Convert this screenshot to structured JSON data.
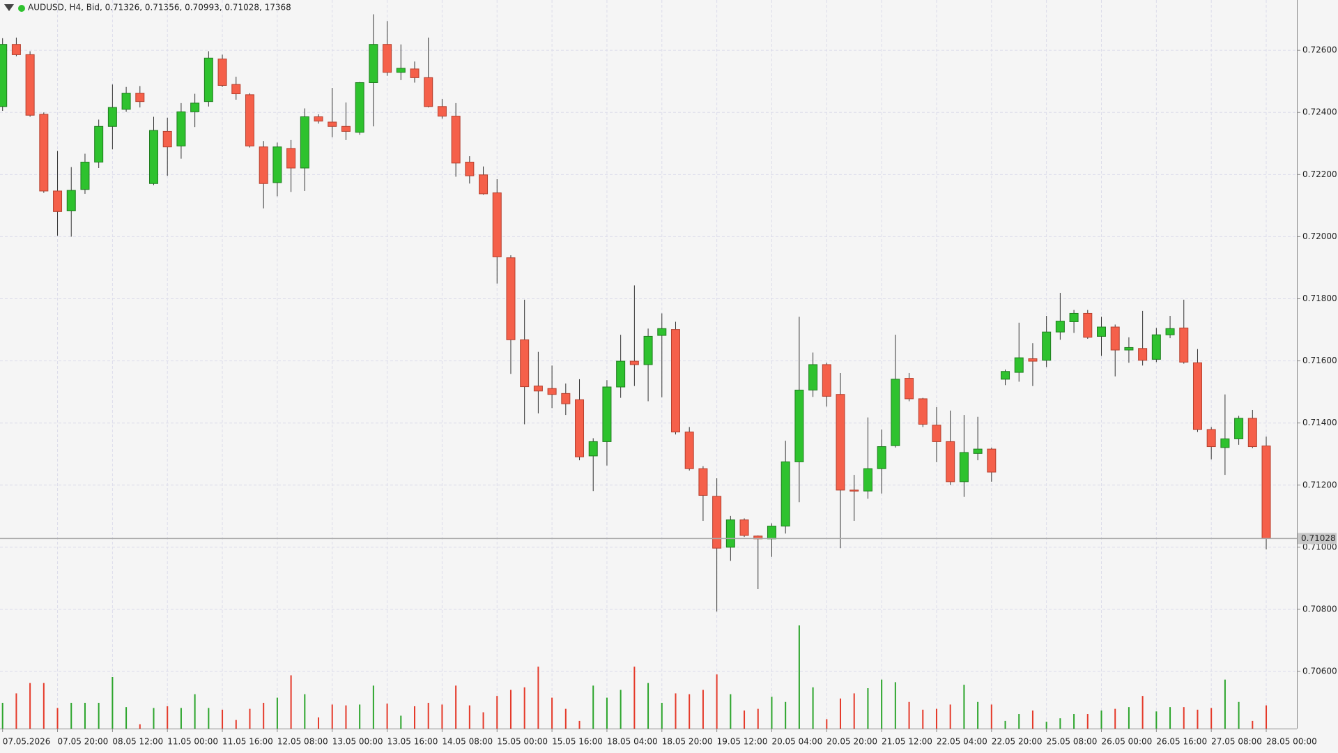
{
  "chart_data": {
    "type": "candlestick",
    "title": "AUDUSD, H4, Bid, 0.71326, 0.71356, 0.70993, 0.71028, 17368",
    "categories": [
      "07.05.2026",
      null,
      null,
      null,
      "07.05 20:00",
      null,
      null,
      null,
      "08.05 12:00",
      null,
      null,
      null,
      "11.05 00:00",
      null,
      null,
      null,
      "11.05 16:00",
      null,
      null,
      null,
      "12.05 08:00",
      null,
      null,
      null,
      "13.05 00:00",
      null,
      null,
      null,
      "13.05 16:00",
      null,
      null,
      null,
      "14.05 08:00",
      null,
      null,
      null,
      "15.05 00:00",
      null,
      null,
      null,
      "15.05 16:00",
      null,
      null,
      null,
      "18.05 04:00",
      null,
      null,
      null,
      "18.05 20:00",
      null,
      null,
      null,
      "19.05 12:00",
      null,
      null,
      null,
      "20.05 04:00",
      null,
      null,
      null,
      "20.05 20:00",
      null,
      null,
      null,
      "21.05 12:00",
      null,
      null,
      null,
      "22.05 04:00",
      null,
      null,
      null,
      "22.05 20:00",
      null,
      null,
      null,
      "25.05 08:00",
      null,
      null,
      null,
      "26.05 00:00",
      null,
      null,
      null,
      "26.05 16:00",
      null,
      null,
      null,
      "27.05 08:00",
      null,
      null,
      null,
      "28.05 00:00"
    ],
    "open": [
      0.72419,
      0.72619,
      0.72586,
      0.72394,
      0.72147,
      0.72083,
      0.72152,
      0.7224,
      0.72355,
      0.7241,
      0.72462,
      0.72171,
      0.72339,
      0.72292,
      0.72402,
      0.72435,
      0.72572,
      0.7249,
      0.72457,
      0.72289,
      0.72174,
      0.72284,
      0.72221,
      0.72386,
      0.72369,
      0.72355,
      0.72336,
      0.72496,
      0.72619,
      0.72529,
      0.7254,
      0.72512,
      0.72419,
      0.72388,
      0.7224,
      0.72199,
      0.72141,
      0.71932,
      0.71668,
      0.71519,
      0.71511,
      0.71495,
      0.71475,
      0.71294,
      0.7134,
      0.71516,
      0.71599,
      0.71588,
      0.71682,
      0.71701,
      0.71371,
      0.71253,
      0.71164,
      0.71,
      0.71088,
      0.71036,
      0.71027,
      0.71068,
      0.71275,
      0.71506,
      0.71588,
      0.71492,
      0.71184,
      0.71181,
      0.71253,
      0.71327,
      0.71544,
      0.71478,
      0.71393,
      0.7134,
      0.71211,
      0.71302,
      0.71316,
      0.71541,
      0.71563,
      0.71607,
      0.71602,
      0.71693,
      0.71726,
      0.71753,
      0.71679,
      0.71709,
      0.71635,
      0.7164,
      0.71605,
      0.71684,
      0.71706,
      0.71594,
      0.71379,
      0.71321,
      0.71349,
      0.71415,
      0.71326
    ],
    "high": [
      0.72639,
      0.72641,
      0.72597,
      0.724,
      0.72276,
      0.72224,
      0.72267,
      0.72377,
      0.7249,
      0.72482,
      0.72485,
      0.72386,
      0.72383,
      0.7243,
      0.7246,
      0.72597,
      0.72586,
      0.72515,
      0.72462,
      0.72308,
      0.72303,
      0.72311,
      0.72413,
      0.72394,
      0.72479,
      0.72432,
      0.72498,
      0.72716,
      0.72694,
      0.72619,
      0.72564,
      0.72641,
      0.72443,
      0.7243,
      0.72259,
      0.72226,
      0.72185,
      0.7194,
      0.71797,
      0.71629,
      0.71585,
      0.71527,
      0.71541,
      0.71351,
      0.71538,
      0.71684,
      0.71843,
      0.71704,
      0.71753,
      0.71726,
      0.71387,
      0.71261,
      0.71222,
      0.71101,
      0.71093,
      0.71038,
      0.71077,
      0.71343,
      0.71742,
      0.71627,
      0.71594,
      0.71561,
      0.71233,
      0.71418,
      0.71379,
      0.71684,
      0.71561,
      0.71481,
      0.71451,
      0.7144,
      0.71426,
      0.7142,
      0.71321,
      0.71572,
      0.71723,
      0.71657,
      0.71745,
      0.71819,
      0.71764,
      0.71764,
      0.71742,
      0.71717,
      0.71676,
      0.71761,
      0.71706,
      0.71745,
      0.71797,
      0.71638,
      0.71387,
      0.71492,
      0.71423,
      0.71442,
      0.71356
    ],
    "low": [
      0.72405,
      0.72581,
      0.72386,
      0.72141,
      0.72003,
      0.72,
      0.72138,
      0.72221,
      0.72281,
      0.72402,
      0.72416,
      0.72166,
      0.72196,
      0.72251,
      0.72353,
      0.72419,
      0.72482,
      0.72441,
      0.72287,
      0.72091,
      0.7213,
      0.72144,
      0.72147,
      0.72364,
      0.7232,
      0.72311,
      0.72328,
      0.72355,
      0.72518,
      0.72504,
      0.72496,
      0.72416,
      0.7238,
      0.72193,
      0.72171,
      0.72135,
      0.71849,
      0.71558,
      0.71396,
      0.71431,
      0.71448,
      0.71426,
      0.7128,
      0.71181,
      0.71263,
      0.71481,
      0.71519,
      0.7147,
      0.71483,
      0.71363,
      0.71247,
      0.71085,
      0.70793,
      0.70956,
      0.71033,
      0.70865,
      0.70969,
      0.71044,
      0.71145,
      0.71484,
      0.71453,
      0.70997,
      0.71085,
      0.71156,
      0.71173,
      0.71321,
      0.7147,
      0.71387,
      0.71274,
      0.712,
      0.71162,
      0.7128,
      0.71211,
      0.71522,
      0.71533,
      0.71519,
      0.7158,
      0.71668,
      0.7169,
      0.71671,
      0.71616,
      0.7155,
      0.71594,
      0.71585,
      0.71596,
      0.71673,
      0.71591,
      0.71371,
      0.71283,
      0.71233,
      0.7133,
      0.71319,
      0.70993
    ],
    "close": [
      0.72619,
      0.72586,
      0.72391,
      0.72147,
      0.72081,
      0.72149,
      0.7224,
      0.72355,
      0.72416,
      0.72462,
      0.72435,
      0.72342,
      0.72289,
      0.72402,
      0.7243,
      0.72575,
      0.72487,
      0.7246,
      0.72292,
      0.72171,
      0.72289,
      0.72221,
      0.72386,
      0.72372,
      0.72355,
      0.72339,
      0.72496,
      0.72619,
      0.72529,
      0.72542,
      0.72512,
      0.72419,
      0.72388,
      0.72237,
      0.72196,
      0.72138,
      0.71935,
      0.71668,
      0.71517,
      0.71503,
      0.71492,
      0.71462,
      0.71291,
      0.7134,
      0.71516,
      0.71599,
      0.71588,
      0.71679,
      0.71704,
      0.71371,
      0.71253,
      0.71167,
      0.70997,
      0.71088,
      0.71038,
      0.71027,
      0.71068,
      0.71275,
      0.71506,
      0.71588,
      0.71486,
      0.71184,
      0.71181,
      0.71253,
      0.71324,
      0.71541,
      0.71478,
      0.71396,
      0.7134,
      0.71211,
      0.71305,
      0.71316,
      0.71242,
      0.71566,
      0.7161,
      0.71599,
      0.71693,
      0.71728,
      0.71753,
      0.71676,
      0.71709,
      0.71635,
      0.71643,
      0.71602,
      0.71684,
      0.71704,
      0.71596,
      0.71379,
      0.71324,
      0.71349,
      0.71415,
      0.71324,
      0.71028
    ],
    "volume": [
      19290,
      26360,
      34080,
      34080,
      15430,
      19290,
      19290,
      19290,
      38580,
      16080,
      3220,
      15430,
      16720,
      15430,
      25720,
      15430,
      14150,
      6430,
      14790,
      19290,
      23150,
      39870,
      25720,
      8360,
      18000,
      17360,
      18000,
      32150,
      18650,
      9650,
      16720,
      19290,
      18000,
      32150,
      17360,
      12220,
      24430,
      28940,
      30860,
      46300,
      23150,
      14790,
      5790,
      32150,
      23150,
      28940,
      46300,
      34080,
      19290,
      26360,
      25720,
      28940,
      40510,
      25720,
      13500,
      14790,
      23790,
      19930,
      77160,
      30860,
      7070,
      22510,
      26360,
      30220,
      36650,
      34720,
      19930,
      14150,
      14790,
      18000,
      32790,
      19930,
      18000,
      5790,
      10930,
      13500,
      5140,
      7720,
      10930,
      10930,
      13500,
      14790,
      16080,
      24430,
      12860,
      16080,
      16080,
      14150,
      15430,
      36650,
      19930,
      5790,
      17368
    ],
    "up_color": "#2ec22e",
    "down_color": "#f5604a",
    "ylim": [
      0.70416,
      0.72762
    ],
    "yticks": [
      {
        "value": 0.706,
        "label": "0.70600"
      },
      {
        "value": 0.708,
        "label": "0.70800"
      },
      {
        "value": 0.71,
        "label": "0.71000"
      },
      {
        "value": 0.712,
        "label": "0.71200"
      },
      {
        "value": 0.714,
        "label": "0.71400"
      },
      {
        "value": 0.716,
        "label": "0.71600"
      },
      {
        "value": 0.718,
        "label": "0.71800"
      },
      {
        "value": 0.72,
        "label": "0.72000"
      },
      {
        "value": 0.722,
        "label": "0.72200"
      },
      {
        "value": 0.724,
        "label": "0.72400"
      },
      {
        "value": 0.726,
        "label": "0.72600"
      }
    ],
    "grid": true
  }
}
